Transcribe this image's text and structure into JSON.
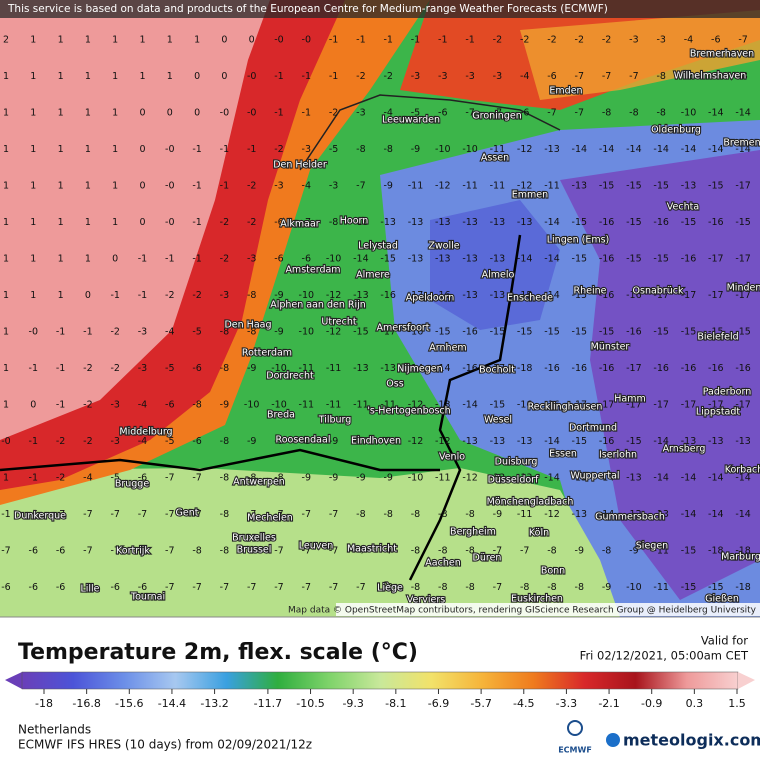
{
  "header": {
    "notice": "This service is based on data and products of the European Centre for Medium-range Weather Forecasts (ECMWF)",
    "attribution": "Map data © OpenStreetMap contributors, rendering GIScience Research Group @ Heidelberg University"
  },
  "map": {
    "grid": [
      [
        "2",
        "1",
        "1",
        "1",
        "1",
        "1",
        "1",
        "1",
        "0",
        "0",
        "-0",
        "-0",
        "-1",
        "-1",
        "-1",
        "-1",
        "-1",
        "-1",
        "-2",
        "-2",
        "-2",
        "-2",
        "-2",
        "-3",
        "-3",
        "-4",
        "-6",
        "-7"
      ],
      [
        "1",
        "1",
        "1",
        "1",
        "1",
        "1",
        "1",
        "0",
        "0",
        "-0",
        "-1",
        "-1",
        "-1",
        "-2",
        "-2",
        "-3",
        "-3",
        "-3",
        "-3",
        "-4",
        "-6",
        "-7",
        "-7",
        "-7",
        "-8",
        "-8",
        "-8",
        "-8"
      ],
      [
        "1",
        "1",
        "1",
        "1",
        "1",
        "0",
        "0",
        "0",
        "-0",
        "-0",
        "-1",
        "-1",
        "-2",
        "-3",
        "-4",
        "-5",
        "-6",
        "-7",
        "-7",
        "-6",
        "-7",
        "-7",
        "-8",
        "-8",
        "-8",
        "-10",
        "-14",
        "-14"
      ],
      [
        "1",
        "1",
        "1",
        "1",
        "1",
        "0",
        "-0",
        "-1",
        "-1",
        "-1",
        "-2",
        "-3",
        "-5",
        "-8",
        "-8",
        "-9",
        "-10",
        "-10",
        "-11",
        "-12",
        "-13",
        "-14",
        "-14",
        "-14",
        "-14",
        "-14",
        "-14",
        "-14"
      ],
      [
        "1",
        "1",
        "1",
        "1",
        "1",
        "0",
        "-0",
        "-1",
        "-1",
        "-2",
        "-3",
        "-4",
        "-3",
        "-7",
        "-9",
        "-11",
        "-12",
        "-11",
        "-11",
        "-12",
        "-11",
        "-13",
        "-15",
        "-15",
        "-15",
        "-13",
        "-15",
        "-17"
      ],
      [
        "1",
        "1",
        "1",
        "1",
        "1",
        "0",
        "-0",
        "-1",
        "-2",
        "-2",
        "-6",
        "-7",
        "-8",
        "-13",
        "-13",
        "-13",
        "-13",
        "-13",
        "-13",
        "-13",
        "-14",
        "-15",
        "-16",
        "-15",
        "-16",
        "-15",
        "-16",
        "-15"
      ],
      [
        "1",
        "1",
        "1",
        "1",
        "0",
        "-1",
        "-1",
        "-1",
        "-2",
        "-3",
        "-6",
        "-6",
        "-10",
        "-14",
        "-15",
        "-13",
        "-13",
        "-13",
        "-13",
        "-14",
        "-14",
        "-15",
        "-16",
        "-15",
        "-15",
        "-16",
        "-17",
        "-17"
      ],
      [
        "1",
        "1",
        "1",
        "0",
        "-1",
        "-1",
        "-2",
        "-2",
        "-3",
        "-8",
        "-9",
        "-10",
        "-12",
        "-13",
        "-16",
        "-17",
        "-16",
        "-13",
        "-13",
        "-15",
        "-14",
        "-15",
        "-16",
        "-16",
        "-17",
        "-17",
        "-17",
        "-17"
      ],
      [
        "1",
        "-0",
        "-1",
        "-1",
        "-2",
        "-3",
        "-4",
        "-5",
        "-8",
        "-8",
        "-9",
        "-10",
        "-12",
        "-15",
        "-17",
        "-16",
        "-15",
        "-16",
        "-15",
        "-15",
        "-15",
        "-15",
        "-15",
        "-16",
        "-15",
        "-15",
        "-15",
        "-15"
      ],
      [
        "1",
        "-1",
        "-1",
        "-2",
        "-2",
        "-3",
        "-5",
        "-6",
        "-8",
        "-9",
        "-10",
        "-11",
        "-11",
        "-13",
        "-13",
        "-14",
        "-14",
        "-16",
        "-17",
        "-18",
        "-16",
        "-16",
        "-16",
        "-17",
        "-16",
        "-16",
        "-16",
        "-16"
      ],
      [
        "1",
        "0",
        "-1",
        "-2",
        "-3",
        "-4",
        "-6",
        "-8",
        "-9",
        "-10",
        "-10",
        "-11",
        "-11",
        "-11",
        "-11",
        "-12",
        "-13",
        "-14",
        "-15",
        "-16",
        "-16",
        "-17",
        "-17",
        "-17",
        "-17",
        "-17",
        "-17",
        "-17"
      ],
      [
        "-0",
        "-1",
        "-2",
        "-2",
        "-3",
        "-4",
        "-5",
        "-6",
        "-8",
        "-9",
        "-9",
        "-9",
        "-9",
        "-10",
        "-11",
        "-12",
        "-12",
        "-13",
        "-13",
        "-13",
        "-14",
        "-15",
        "-16",
        "-15",
        "-14",
        "-13",
        "-13",
        "-13"
      ],
      [
        "1",
        "-1",
        "-2",
        "-4",
        "-5",
        "-6",
        "-7",
        "-7",
        "-8",
        "-8",
        "-8",
        "-9",
        "-9",
        "-9",
        "-9",
        "-10",
        "-11",
        "-12",
        "-13",
        "-13",
        "-14",
        "-15",
        "-14",
        "-13",
        "-14",
        "-14",
        "-14",
        "-14"
      ],
      [
        "-1",
        "-6",
        "-7",
        "-7",
        "-7",
        "-7",
        "-7",
        "-7",
        "-8",
        "-7",
        "-7",
        "-7",
        "-7",
        "-8",
        "-8",
        "-8",
        "-8",
        "-8",
        "-9",
        "-11",
        "-12",
        "-13",
        "-14",
        "-12",
        "-13",
        "-14",
        "-14",
        "-14"
      ],
      [
        "-7",
        "-6",
        "-6",
        "-7",
        "-7",
        "-7",
        "-7",
        "-8",
        "-8",
        "-7",
        "-7",
        "-7",
        "-7",
        "-7",
        "-7",
        "-8",
        "-8",
        "-8",
        "-7",
        "-7",
        "-8",
        "-9",
        "-8",
        "-9",
        "-11",
        "-15",
        "-18",
        "-18"
      ],
      [
        "-6",
        "-6",
        "-6",
        "-6",
        "-6",
        "-6",
        "-7",
        "-7",
        "-7",
        "-7",
        "-7",
        "-7",
        "-7",
        "-7",
        "-8",
        "-8",
        "-8",
        "-8",
        "-7",
        "-8",
        "-8",
        "-8",
        "-9",
        "-10",
        "-11",
        "-15",
        "-15",
        "-18"
      ]
    ],
    "cities": [
      "Bremerhaven",
      "Wilhelmshaven",
      "Emden",
      "Leeuwarden",
      "Groningen",
      "Oldenburg",
      "Bremen",
      "Den Helder",
      "Assen",
      "Emmen",
      "Vechta",
      "Alkmaar",
      "Hoorn",
      "Lingen (Ems)",
      "Lelystad",
      "Zwolle",
      "Amsterdam",
      "Almere",
      "Almelo",
      "Minden",
      "Alphen aan den Rijn",
      "Apeldoorn",
      "Enschede",
      "Rheine",
      "Osnabrück",
      "Den Haag",
      "Utrecht",
      "Amersfoort",
      "Bielefeld",
      "Arnhem",
      "Münster",
      "Rotterdam",
      "Nijmegen",
      "Bocholt",
      "Dordrecht",
      "Oss",
      "Hamm",
      "Paderborn",
      "Breda",
      "Tilburg",
      "'s-Hertogenbosch",
      "Recklinghausen",
      "Wesel",
      "Lippstadt",
      "Middelburg",
      "Roosendaal",
      "Dortmund",
      "Eindhoven",
      "Essen",
      "Iserlohn",
      "Arnsberg",
      "Venlo",
      "Duisburg",
      "Wuppertal",
      "Korbach",
      "Brugge",
      "Antwerpen",
      "Düsseldorf",
      "Mönchengladbach",
      "Dunkerque",
      "Gent",
      "Mechelen",
      "Gummersbach",
      "Bergheim",
      "Köln",
      "Bruxelles",
      "Brussel",
      "Leuven",
      "Maastricht",
      "Siegen",
      "Kortrijk",
      "Düren",
      "Marburg",
      "Aachen",
      "Bonn",
      "Lille",
      "Tournai",
      "Liège",
      "Verviers",
      "Euskirchen",
      "Gießen"
    ]
  },
  "legend": {
    "title": "Temperature 2m, flex. scale (°C)",
    "valid_label": "Valid for",
    "valid_time": "Fri 02/12/2021, 05:00am CET",
    "ticks": [
      -18,
      -16.8,
      -15.6,
      -14.4,
      -13.2,
      -11.7,
      -10.5,
      -9.3,
      -8.1,
      -6.9,
      -5.7,
      -4.5,
      -3.3,
      -2.1,
      -0.9,
      0.3,
      1.5
    ],
    "colors": [
      "#6a3fb8",
      "#4c54d8",
      "#6c8fe8",
      "#a7c8f0",
      "#3aa0e0",
      "#2fae3f",
      "#7ed36a",
      "#c8e89a",
      "#f2e26a",
      "#f6b43a",
      "#ef7b1e",
      "#d8282a",
      "#a8141c",
      "#ee9a9a",
      "#f8d0d0"
    ]
  },
  "footer": {
    "region": "Netherlands",
    "model": "ECMWF IFS HRES (10 days) from 02/09/2021/12z",
    "ecmwf": "ECMWF",
    "brand": "meteologix.com"
  }
}
